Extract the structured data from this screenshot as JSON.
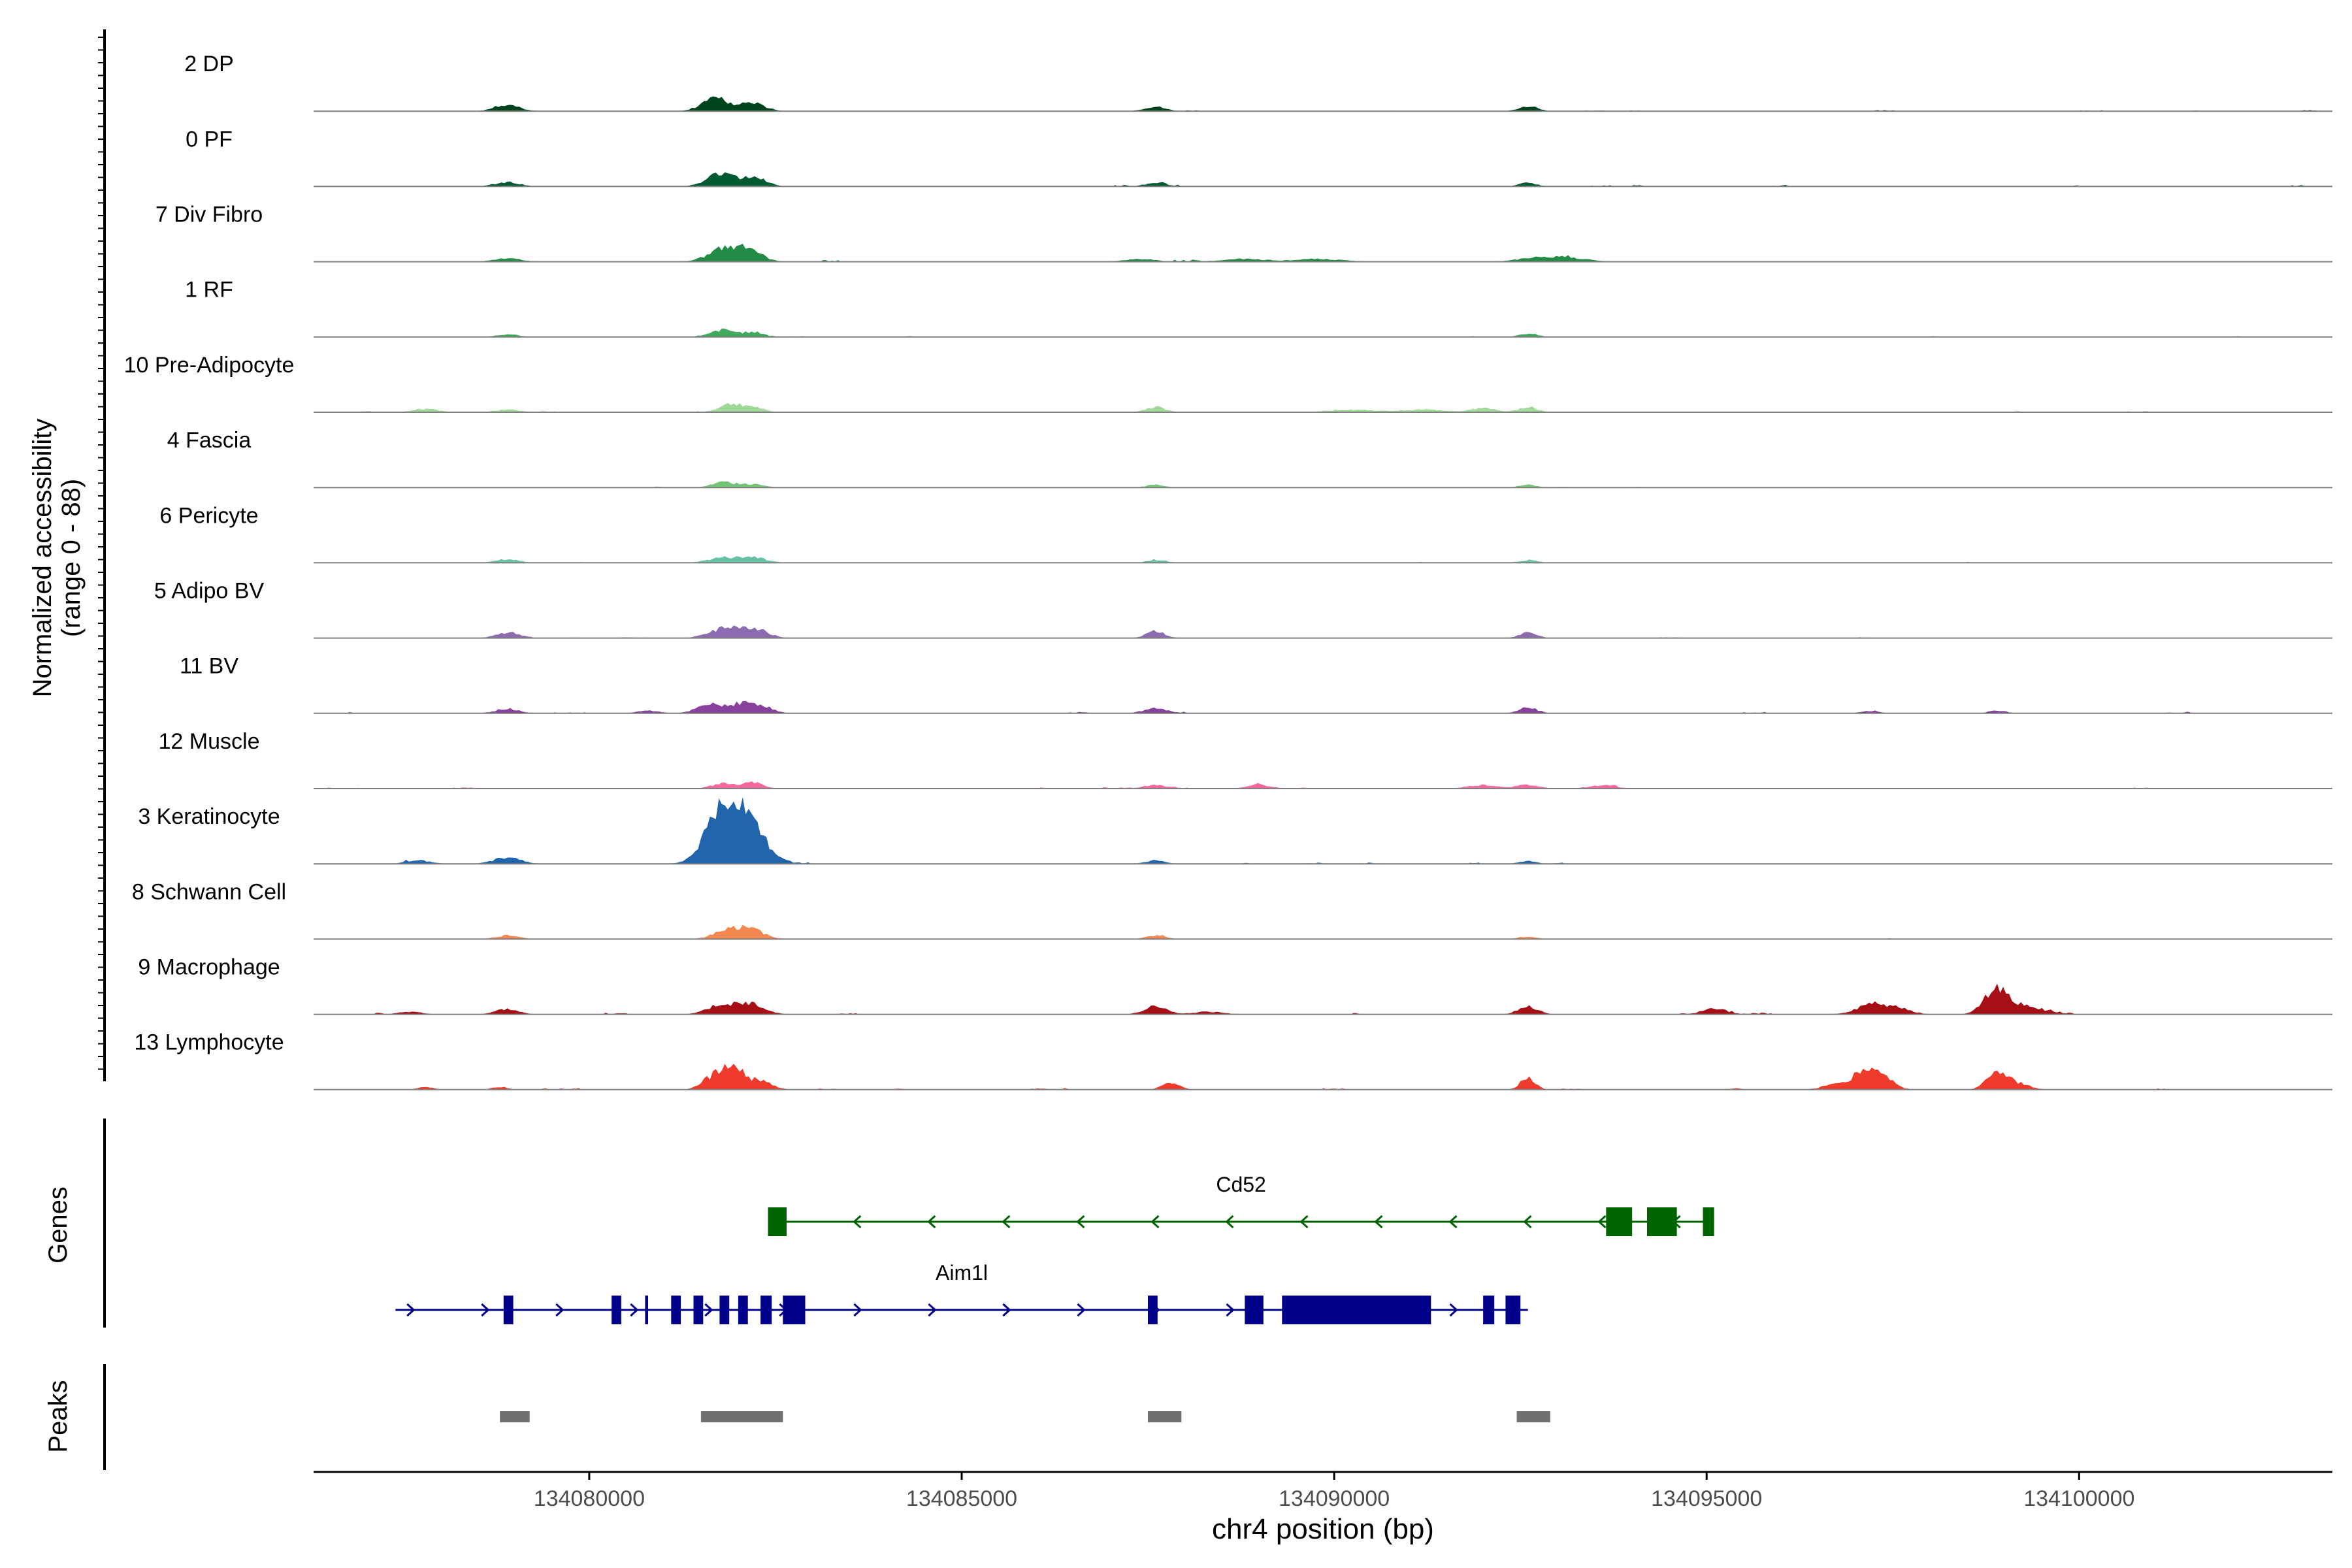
{
  "chart_data": {
    "type": "area",
    "genomic_region": {
      "chromosome": "chr4",
      "start": 134076300,
      "end": 134103400
    },
    "y_axis": {
      "label_line1": "Normalized accessibility",
      "label_line2": "(range 0 - 88)",
      "range": [
        0,
        88
      ]
    },
    "x_axis": {
      "label": "chr4 position (bp)",
      "ticks": [
        134080000,
        134085000,
        134090000,
        134095000,
        134100000
      ]
    },
    "tracks": [
      {
        "name": "2 DP",
        "color": "#00441B",
        "peaks": [
          [
            134078900,
            7,
            160
          ],
          [
            134081700,
            15,
            180
          ],
          [
            134082200,
            9,
            160
          ],
          [
            134087600,
            5,
            140
          ],
          [
            134092600,
            6,
            120
          ]
        ],
        "noise": 1.2,
        "seed": 11
      },
      {
        "name": "0 PF",
        "color": "#005A32",
        "peaks": [
          [
            134078900,
            5,
            160
          ],
          [
            134081750,
            14,
            180
          ],
          [
            134082200,
            11,
            160
          ],
          [
            134087600,
            4,
            140
          ],
          [
            134092600,
            4,
            120
          ]
        ],
        "noise": 1.5,
        "seed": 12
      },
      {
        "name": "7 Div Fibro",
        "color": "#238B45",
        "peaks": [
          [
            134078900,
            4,
            180
          ],
          [
            134081800,
            14,
            200
          ],
          [
            134082150,
            12,
            170
          ],
          [
            134087400,
            3,
            200
          ],
          [
            134088800,
            3,
            300
          ],
          [
            134092700,
            5,
            220
          ],
          [
            134093200,
            4,
            220
          ],
          [
            134089800,
            3,
            300
          ]
        ],
        "noise": 2.2,
        "seed": 13
      },
      {
        "name": "1 RF",
        "color": "#41AB5D",
        "peaks": [
          [
            134078900,
            3,
            150
          ],
          [
            134081800,
            8,
            160
          ],
          [
            134082200,
            5,
            140
          ],
          [
            134092600,
            4,
            120
          ]
        ],
        "noise": 1.0,
        "seed": 14
      },
      {
        "name": "10 Pre-Adipocyte",
        "color": "#A1D99B",
        "peaks": [
          [
            134077800,
            4,
            160
          ],
          [
            134078900,
            3,
            160
          ],
          [
            134081900,
            9,
            160
          ],
          [
            134082200,
            5,
            140
          ],
          [
            134087600,
            6,
            130
          ],
          [
            134092000,
            5,
            150
          ],
          [
            134092600,
            6,
            120
          ],
          [
            134090200,
            3,
            300
          ],
          [
            134091200,
            3,
            300
          ]
        ],
        "noise": 1.4,
        "seed": 15
      },
      {
        "name": "4 Fascia",
        "color": "#74C476",
        "peaks": [
          [
            134081800,
            6,
            150
          ],
          [
            134082200,
            4,
            140
          ],
          [
            134087600,
            3,
            120
          ],
          [
            134092600,
            3,
            120
          ]
        ],
        "noise": 0.9,
        "seed": 16
      },
      {
        "name": "6 Pericyte",
        "color": "#66C2A4",
        "peaks": [
          [
            134078900,
            4,
            150
          ],
          [
            134081800,
            6,
            200
          ],
          [
            134082200,
            6,
            170
          ],
          [
            134087600,
            3,
            120
          ],
          [
            134092600,
            3,
            120
          ]
        ],
        "noise": 0.9,
        "seed": 17
      },
      {
        "name": "5 Adipo BV",
        "color": "#8C6BB1",
        "peaks": [
          [
            134078900,
            6,
            150
          ],
          [
            134081800,
            10,
            200
          ],
          [
            134082200,
            11,
            180
          ],
          [
            134087600,
            8,
            120
          ],
          [
            134092600,
            6,
            120
          ]
        ],
        "noise": 1.0,
        "seed": 18
      },
      {
        "name": "11 BV",
        "color": "#88419D",
        "peaks": [
          [
            134078900,
            5,
            160
          ],
          [
            134081600,
            9,
            160
          ],
          [
            134082000,
            10,
            170
          ],
          [
            134082300,
            8,
            150
          ],
          [
            134087600,
            6,
            150
          ],
          [
            134092600,
            7,
            120
          ],
          [
            134080800,
            3,
            150
          ],
          [
            134097200,
            3,
            120
          ],
          [
            134098900,
            3,
            120
          ]
        ],
        "noise": 1.6,
        "seed": 19
      },
      {
        "name": "12 Muscle",
        "color": "#F768A1",
        "peaks": [
          [
            134081800,
            6,
            150
          ],
          [
            134082200,
            7,
            130
          ],
          [
            134087600,
            4,
            150
          ],
          [
            134089000,
            4,
            150
          ],
          [
            134092000,
            4,
            200
          ],
          [
            134092600,
            4,
            150
          ],
          [
            134093600,
            3,
            200
          ]
        ],
        "noise": 1.5,
        "seed": 20
      },
      {
        "name": "3 Keratinocyte",
        "color": "#2166AC",
        "peaks": [
          [
            134081900,
            44,
            260
          ],
          [
            134082150,
            30,
            220
          ],
          [
            134081700,
            20,
            180
          ],
          [
            134078900,
            7,
            180
          ],
          [
            134077700,
            4,
            160
          ],
          [
            134087600,
            4,
            120
          ],
          [
            134092600,
            3,
            120
          ]
        ],
        "noise": 1.5,
        "seed": 21
      },
      {
        "name": "8 Schwann Cell",
        "color": "#F4874F",
        "peaks": [
          [
            134078900,
            4,
            150
          ],
          [
            134081900,
            11,
            200
          ],
          [
            134082200,
            8,
            170
          ],
          [
            134087600,
            4,
            130
          ],
          [
            134092600,
            3,
            120
          ]
        ],
        "noise": 1.0,
        "seed": 22
      },
      {
        "name": "9 Macrophage",
        "color": "#A50F15",
        "peaks": [
          [
            134078900,
            6,
            150
          ],
          [
            134081800,
            11,
            200
          ],
          [
            134082200,
            10,
            180
          ],
          [
            134087600,
            9,
            150
          ],
          [
            134092600,
            9,
            130
          ],
          [
            134095100,
            7,
            150
          ],
          [
            134097200,
            10,
            200
          ],
          [
            134097500,
            6,
            200
          ],
          [
            134098900,
            28,
            160
          ],
          [
            134099300,
            8,
            250
          ],
          [
            134077600,
            3,
            150
          ],
          [
            134088300,
            3,
            200
          ]
        ],
        "noise": 1.8,
        "seed": 23
      },
      {
        "name": "13 Lymphocyte",
        "color": "#EF3B2C",
        "peaks": [
          [
            134081600,
            9,
            120
          ],
          [
            134081900,
            27,
            160
          ],
          [
            134082300,
            9,
            150
          ],
          [
            134087800,
            7,
            120
          ],
          [
            134092600,
            13,
            100
          ],
          [
            134097100,
            20,
            150
          ],
          [
            134097350,
            14,
            150
          ],
          [
            134098900,
            18,
            140
          ],
          [
            134099200,
            6,
            150
          ],
          [
            134077800,
            3,
            100
          ],
          [
            134078800,
            3,
            100
          ],
          [
            134096700,
            6,
            150
          ]
        ],
        "noise": 1.5,
        "seed": 24
      }
    ],
    "genes_label": "Genes",
    "peaks_label": "Peaks",
    "genes": [
      {
        "name": "Cd52",
        "strand": "-",
        "color": "#006400",
        "start": 134082400,
        "end": 134095100,
        "exons": [
          [
            134082400,
            134082650
          ],
          [
            134093650,
            134094000
          ],
          [
            134094200,
            134094600
          ],
          [
            134094950,
            134095100
          ]
        ]
      },
      {
        "name": "Aim1l",
        "strand": "+",
        "color": "#00008B",
        "start": 134077400,
        "end": 134092600,
        "exons": [
          [
            134078850,
            134078980
          ],
          [
            134080300,
            134080430
          ],
          [
            134080750,
            134080790
          ],
          [
            134081100,
            134081230
          ],
          [
            134081400,
            134081530
          ],
          [
            134081750,
            134081880
          ],
          [
            134082000,
            134082130
          ],
          [
            134082300,
            134082450
          ],
          [
            134082600,
            134082900
          ],
          [
            134087500,
            134087630
          ],
          [
            134088800,
            134089050
          ],
          [
            134089300,
            134091300
          ],
          [
            134092000,
            134092150
          ],
          [
            134092300,
            134092500
          ]
        ]
      }
    ],
    "peaks": [
      [
        134078800,
        134079200
      ],
      [
        134081500,
        134082600
      ],
      [
        134087500,
        134087950
      ],
      [
        134092450,
        134092900
      ]
    ]
  }
}
